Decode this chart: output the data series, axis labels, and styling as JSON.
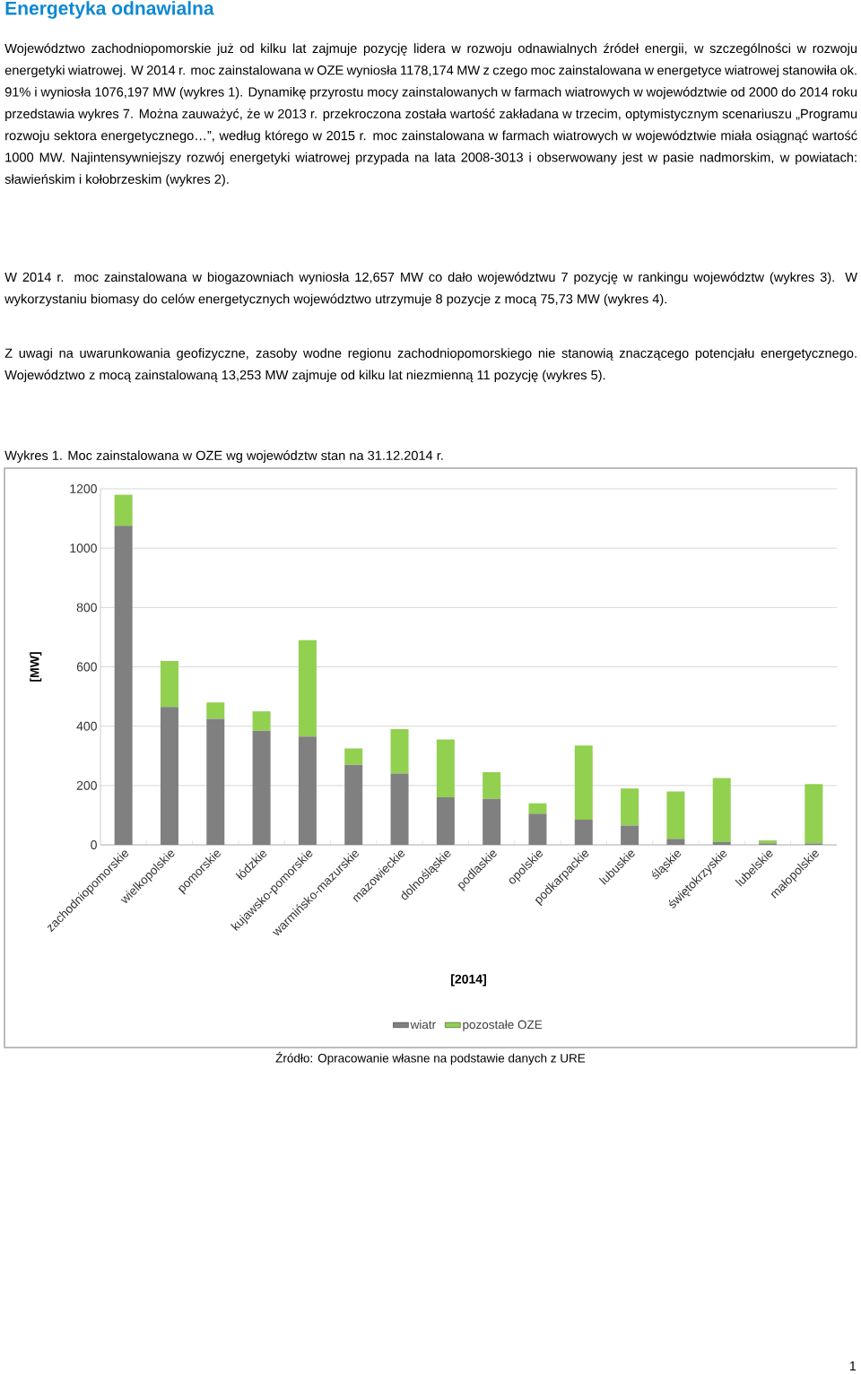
{
  "chart_data": {
    "type": "bar",
    "title": "Energetyka odnawialna",
    "subtitle": "Wykres 1. Moc zainstalowana w OZE wg województw stan na 31.12.2014 r.",
    "annotations": [
      "Województwo zachodniopomorskie już od kilku lat zajmuje pozycję lidera w rozwoju odnawialnych źródeł energii, w szczególności w rozwoju energetyki wiatrowej. W 2014 r. moc zainstalowana w OZE wyniosła 1178,174 MW z czego moc zainstalowana w energetyce wiatrowej stanowiła ok. 91% i wyniosła 1076,197 MW (wykres 1). Dynamikę przyrostu mocy zainstalowanych w farmach wiatrowych w województwie od 2000 do 2014 roku przedstawia wykres 7. Można zauważyć, że w 2013 r. przekroczona została wartość zakładana w trzecim, optymistycznym scenariuszu „Programu rozwoju sektora energetycznego…”, według którego w 2015 r. moc zainstalowana w farmach wiatrowych w województwie miała osiągnąć wartość 1000 MW. Najintensywniejszy rozwój energetyki wiatrowej przypada na lata 2008-3013 i obserwowany jest w pasie nadmorskim, w powiatach: sławieńskim i kołobrzeskim (wykres 2).",
      "W 2014 r. moc zainstalowana w biogazowniach wyniosła 12,657 MW co dało województwu 7 pozycję w rankingu województw (wykres 3). W wykorzystaniu biomasy do celów energetycznych województwo utrzymuje 8 pozycje z mocą 75,73 MW (wykres 4).",
      "Z uwagi na uwarunkowania geofizyczne, zasoby wodne regionu zachodniopomorskiego nie stanowią znaczącego potencjału energetycznego. Województwo z mocą zainstalowaną 13,253 MW zajmuje od kilku lat niezmienną 11 pozycję (wykres 5).",
      "Źródło: Opracowanie własne na podstawie danych z URE",
      "1"
    ],
    "xlabel": "[2014]",
    "ylabel": "[MW]",
    "categories": [
      "zachodniopomorskie",
      "wielkopolskie",
      "pomorskie",
      "łódzkie",
      "kujawsko-pomorskie",
      "warmińsko-mazurskie",
      "mazowieckie",
      "dolnośląskie",
      "podlaskie",
      "opolskie",
      "podkarpackie",
      "lubuskie",
      "śląskie",
      "świętokrzyskie",
      "lubelskie",
      "małopolskie"
    ],
    "series": [
      {
        "name": "wiatr",
        "color": "#808080",
        "values": [
          1075,
          465,
          425,
          385,
          365,
          270,
          240,
          160,
          155,
          105,
          85,
          65,
          20,
          10,
          5,
          5
        ]
      },
      {
        "name": "pozostałe OZE",
        "color": "#92d050",
        "values": [
          105,
          155,
          55,
          65,
          325,
          55,
          150,
          195,
          90,
          35,
          250,
          125,
          160,
          215,
          10,
          200
        ]
      }
    ],
    "stacked": true,
    "ylim": [
      0,
      1200
    ],
    "yticks": [
      0,
      200,
      400,
      600,
      800,
      1000,
      1200
    ],
    "grid": "y",
    "legend": "bottom"
  }
}
